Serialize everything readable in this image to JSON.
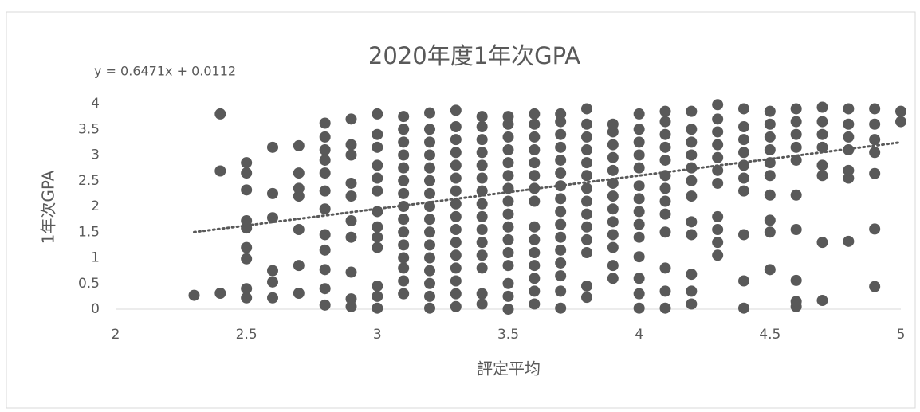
{
  "chart_data": {
    "type": "scatter",
    "title": "2020年度1年次GPA",
    "x_label": "評定平均",
    "y_label": "1年次GPA",
    "color": "#595959",
    "x": [
      2.3,
      2.4,
      2.5,
      2.6,
      2.7,
      2.8,
      2.9,
      3.0,
      3.1,
      3.2,
      3.3,
      3.4,
      3.5,
      3.6,
      3.7,
      3.8,
      3.9,
      4.0,
      4.1,
      4.2,
      4.3,
      4.4,
      4.5,
      4.6,
      4.7,
      4.8,
      4.9,
      5.0
    ],
    "values": [
      [
        0.27
      ],
      [
        0.31,
        2.69,
        3.8
      ],
      [
        0.22,
        0.4,
        0.98,
        1.2,
        1.58,
        1.72,
        2.32,
        2.65,
        2.85
      ],
      [
        0.22,
        0.53,
        0.75,
        1.78,
        2.25,
        3.15
      ],
      [
        0.31,
        0.85,
        1.55,
        2.2,
        2.35,
        2.65,
        3.18
      ],
      [
        0.08,
        0.4,
        0.77,
        1.15,
        1.45,
        1.95,
        2.3,
        2.65,
        2.9,
        3.1,
        3.35,
        3.62
      ],
      [
        0.05,
        0.2,
        0.72,
        1.4,
        1.72,
        2.2,
        2.45,
        3.0,
        3.2,
        3.7
      ],
      [
        0.02,
        0.25,
        0.45,
        1.2,
        1.4,
        1.6,
        1.9,
        2.3,
        2.55,
        2.8,
        3.15,
        3.4,
        3.8
      ],
      [
        0.3,
        0.55,
        0.8,
        1.0,
        1.25,
        1.5,
        1.75,
        2.0,
        2.25,
        2.5,
        2.75,
        3.0,
        3.25,
        3.5,
        3.75
      ],
      [
        0.02,
        0.25,
        0.5,
        0.75,
        1.0,
        1.25,
        1.5,
        1.75,
        2.0,
        2.25,
        2.5,
        2.75,
        3.0,
        3.25,
        3.5,
        3.82
      ],
      [
        0.05,
        0.3,
        0.55,
        0.8,
        1.05,
        1.3,
        1.55,
        1.8,
        2.05,
        2.3,
        2.55,
        2.8,
        3.05,
        3.3,
        3.55,
        3.87
      ],
      [
        0.1,
        0.3,
        0.8,
        1.05,
        1.3,
        1.55,
        1.8,
        2.05,
        2.3,
        2.55,
        2.8,
        3.05,
        3.3,
        3.55,
        3.75
      ],
      [
        0.0,
        0.25,
        0.5,
        0.85,
        1.1,
        1.35,
        1.6,
        1.85,
        2.1,
        2.35,
        2.6,
        2.85,
        3.1,
        3.35,
        3.6,
        3.75
      ],
      [
        0.1,
        0.35,
        0.6,
        0.85,
        1.1,
        1.35,
        1.6,
        2.1,
        2.35,
        2.6,
        2.85,
        3.1,
        3.35,
        3.6,
        3.8
      ],
      [
        0.02,
        0.35,
        0.65,
        0.9,
        1.15,
        1.4,
        1.65,
        1.9,
        2.15,
        2.4,
        2.65,
        2.9,
        3.15,
        3.4,
        3.65,
        3.8
      ],
      [
        0.23,
        0.45,
        1.1,
        1.35,
        1.6,
        1.85,
        2.1,
        2.35,
        2.6,
        2.85,
        3.1,
        3.35,
        3.6,
        3.9
      ],
      [
        0.6,
        0.85,
        1.2,
        1.45,
        1.7,
        1.95,
        2.2,
        2.45,
        2.7,
        2.95,
        3.2,
        3.45,
        3.6
      ],
      [
        0.02,
        0.3,
        0.6,
        1.02,
        1.4,
        1.65,
        1.9,
        2.15,
        2.4,
        2.75,
        3.0,
        3.25,
        3.5,
        3.8
      ],
      [
        0.02,
        0.35,
        0.8,
        1.5,
        1.85,
        2.1,
        2.35,
        2.6,
        2.9,
        3.15,
        3.4,
        3.65,
        3.85
      ],
      [
        0.1,
        0.35,
        0.68,
        1.45,
        1.7,
        2.2,
        2.5,
        2.75,
        3.0,
        3.25,
        3.5,
        3.85
      ],
      [
        1.05,
        1.3,
        1.55,
        1.8,
        2.45,
        2.7,
        2.95,
        3.2,
        3.45,
        3.7,
        3.98
      ],
      [
        0.02,
        0.55,
        1.45,
        2.3,
        2.55,
        2.8,
        3.05,
        3.3,
        3.55,
        3.9
      ],
      [
        0.77,
        1.5,
        1.73,
        2.22,
        2.6,
        2.85,
        3.1,
        3.35,
        3.6,
        3.85
      ],
      [
        0.05,
        0.15,
        0.56,
        1.55,
        2.22,
        2.9,
        3.15,
        3.4,
        3.65,
        3.9
      ],
      [
        0.17,
        1.3,
        2.6,
        2.8,
        3.15,
        3.4,
        3.65,
        3.93
      ],
      [
        1.32,
        2.55,
        2.7,
        3.1,
        3.35,
        3.6,
        3.9
      ],
      [
        0.44,
        1.56,
        2.64,
        3.05,
        3.3,
        3.6,
        3.9
      ],
      [
        3.65,
        3.85
      ]
    ],
    "trendline": {
      "label": "y = 0.6471x + 0.0112",
      "slope": 0.6471,
      "intercept": 0.0112,
      "x_range": [
        2.3,
        5
      ],
      "color": "#595959"
    },
    "xlim": [
      2,
      5
    ],
    "xticks": [
      2,
      2.5,
      3,
      3.5,
      4,
      4.5,
      5
    ],
    "ylim": [
      0,
      4
    ],
    "yticks": [
      0,
      0.5,
      1,
      1.5,
      2,
      2.5,
      3,
      3.5,
      4
    ],
    "grid": false
  }
}
